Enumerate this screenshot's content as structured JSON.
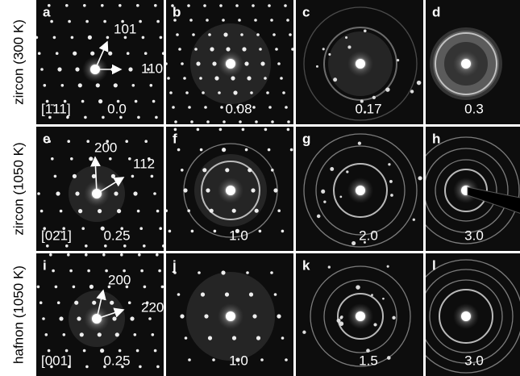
{
  "row_labels": [
    "zircon (300 K)",
    "zircon (1050 K)",
    "hafnon (1050 K)"
  ],
  "panels": [
    {
      "letter": "a",
      "value": "0.0",
      "zone_axis": "[1̄11]",
      "indices": [
        "101",
        "110"
      ]
    },
    {
      "letter": "b",
      "value": "0.08"
    },
    {
      "letter": "c",
      "value": "0.17"
    },
    {
      "letter": "d",
      "value": "0.3"
    },
    {
      "letter": "e",
      "value": "0.25",
      "zone_axis": "[02̄1]",
      "indices": [
        "200",
        "112"
      ]
    },
    {
      "letter": "f",
      "value": "1.0"
    },
    {
      "letter": "g",
      "value": "2.0"
    },
    {
      "letter": "h",
      "value": "3.0"
    },
    {
      "letter": "i",
      "value": "0.25",
      "zone_axis": "[001]",
      "indices": [
        "200",
        "220"
      ]
    },
    {
      "letter": "j",
      "value": "1.0"
    },
    {
      "letter": "k",
      "value": "1.5"
    },
    {
      "letter": "l",
      "value": "3.0"
    }
  ]
}
